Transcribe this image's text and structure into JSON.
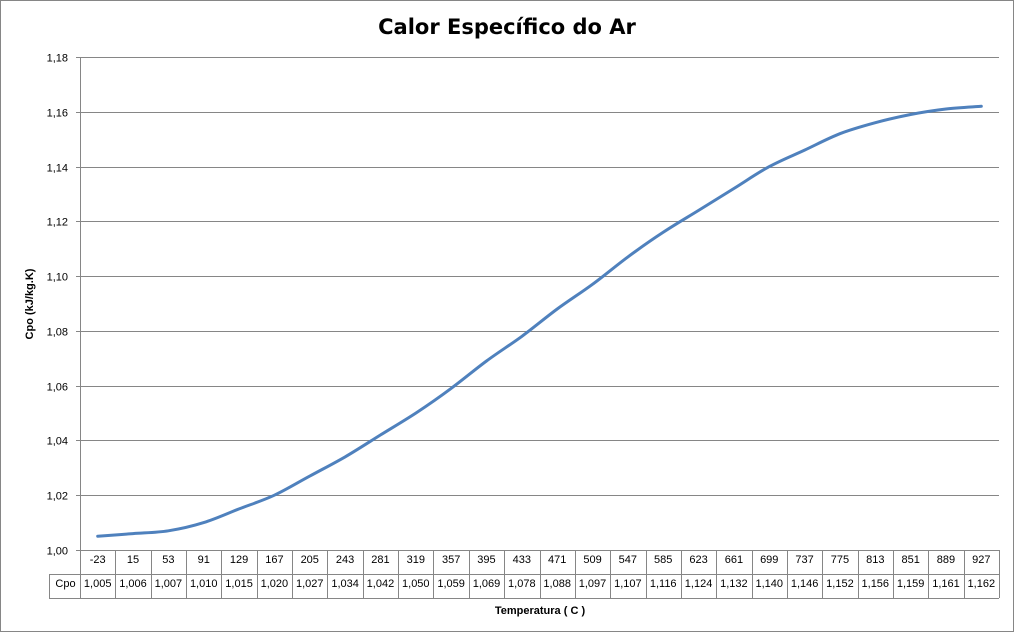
{
  "chart_data": {
    "type": "line",
    "title": "Calor Específico do Ar",
    "xlabel": "Temperatura ( C )",
    "ylabel": "Cpo (kJ/kg.K)",
    "ylim": [
      1.0,
      1.18
    ],
    "y_ticks": [
      "1,00",
      "1,02",
      "1,04",
      "1,06",
      "1,08",
      "1,10",
      "1,12",
      "1,14",
      "1,16",
      "1,18"
    ],
    "grid": true,
    "legend": "none",
    "categories": [
      "-23",
      "15",
      "53",
      "91",
      "129",
      "167",
      "205",
      "243",
      "281",
      "319",
      "357",
      "395",
      "433",
      "471",
      "509",
      "547",
      "585",
      "623",
      "661",
      "699",
      "737",
      "775",
      "813",
      "851",
      "889",
      "927"
    ],
    "series": [
      {
        "name": "Cpo",
        "color": "#4f81bd",
        "values": [
          1.005,
          1.006,
          1.007,
          1.01,
          1.015,
          1.02,
          1.027,
          1.034,
          1.042,
          1.05,
          1.059,
          1.069,
          1.078,
          1.088,
          1.097,
          1.107,
          1.116,
          1.124,
          1.132,
          1.14,
          1.146,
          1.152,
          1.156,
          1.159,
          1.161,
          1.162
        ],
        "labels": [
          "1,005",
          "1,006",
          "1,007",
          "1,010",
          "1,015",
          "1,020",
          "1,027",
          "1,034",
          "1,042",
          "1,050",
          "1,059",
          "1,069",
          "1,078",
          "1,088",
          "1,097",
          "1,107",
          "1,116",
          "1,124",
          "1,132",
          "1,140",
          "1,146",
          "1,152",
          "1,156",
          "1,159",
          "1,161",
          "1,162"
        ]
      }
    ],
    "data_table": true
  }
}
